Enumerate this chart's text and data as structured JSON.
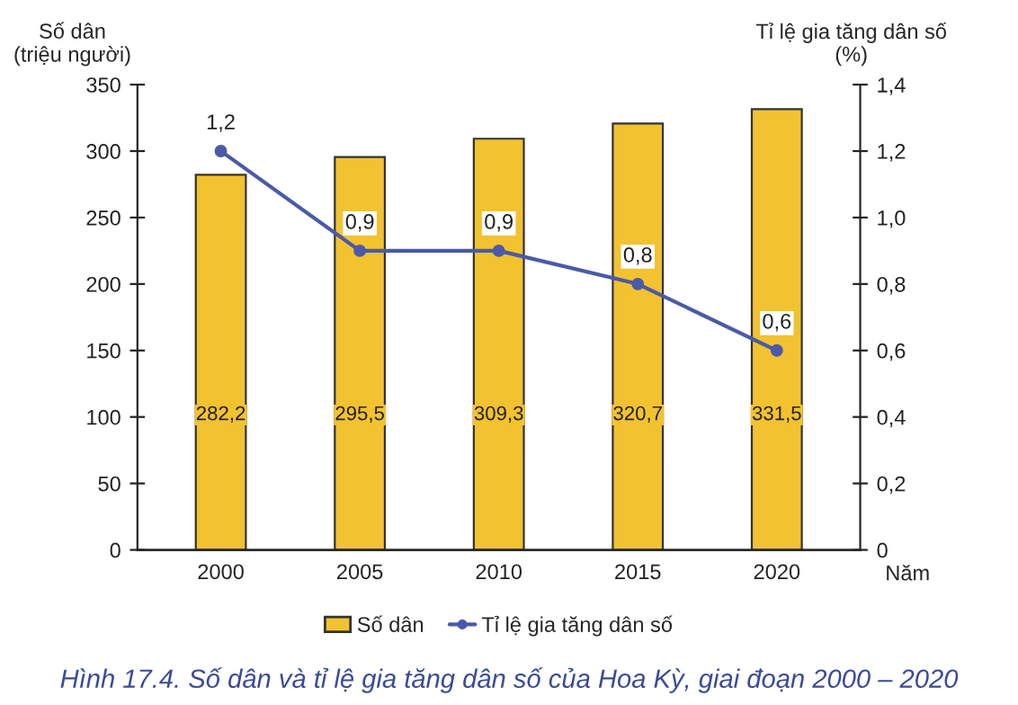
{
  "chart_data": {
    "type": "bar",
    "ylabel": "Số dân\n(triệu người)",
    "y2label": "Tỉ lệ gia tăng dân số\n(%)",
    "xlabel": "Năm",
    "categories": [
      "2000",
      "2005",
      "2010",
      "2015",
      "2020"
    ],
    "series": [
      {
        "name": "Số dân",
        "color": "#f2c230",
        "values": [
          282.2,
          295.5,
          309.3,
          320.7,
          331.5
        ],
        "value_labels": [
          "282,2",
          "295,5",
          "309,3",
          "320,7",
          "331,5"
        ]
      },
      {
        "name": "Tỉ lệ gia tăng dân số",
        "type": "line",
        "axis": "y2",
        "color": "#4a5aa8",
        "marker": "circle",
        "values": [
          1.2,
          0.9,
          0.9,
          0.8,
          0.6
        ],
        "value_labels": [
          "1,2",
          "0,9",
          "0,9",
          "0,8",
          "0,6"
        ]
      }
    ],
    "ylim": [
      0,
      350
    ],
    "yticks": [
      0,
      50,
      100,
      150,
      200,
      250,
      300,
      350
    ],
    "y2lim": [
      0,
      1.4
    ],
    "y2ticks": [
      0,
      {
        "value": 0.2,
        "label": "0,2"
      },
      {
        "value": 0.4,
        "label": "0,4"
      },
      {
        "value": 0.6,
        "label": "0,6"
      },
      {
        "value": 0.8,
        "label": "0,8"
      },
      {
        "value": 1.0,
        "label": "1,0"
      },
      {
        "value": 1.2,
        "label": "1,2"
      },
      {
        "value": 1.4,
        "label": "1,4"
      }
    ],
    "grid": false,
    "legend": "bottom",
    "annotations": [
      "Hình 17.4. Số dân và tỉ lệ gia tăng dân số của Hoa Kỳ, giai đoạn 2000 – 2020"
    ]
  }
}
